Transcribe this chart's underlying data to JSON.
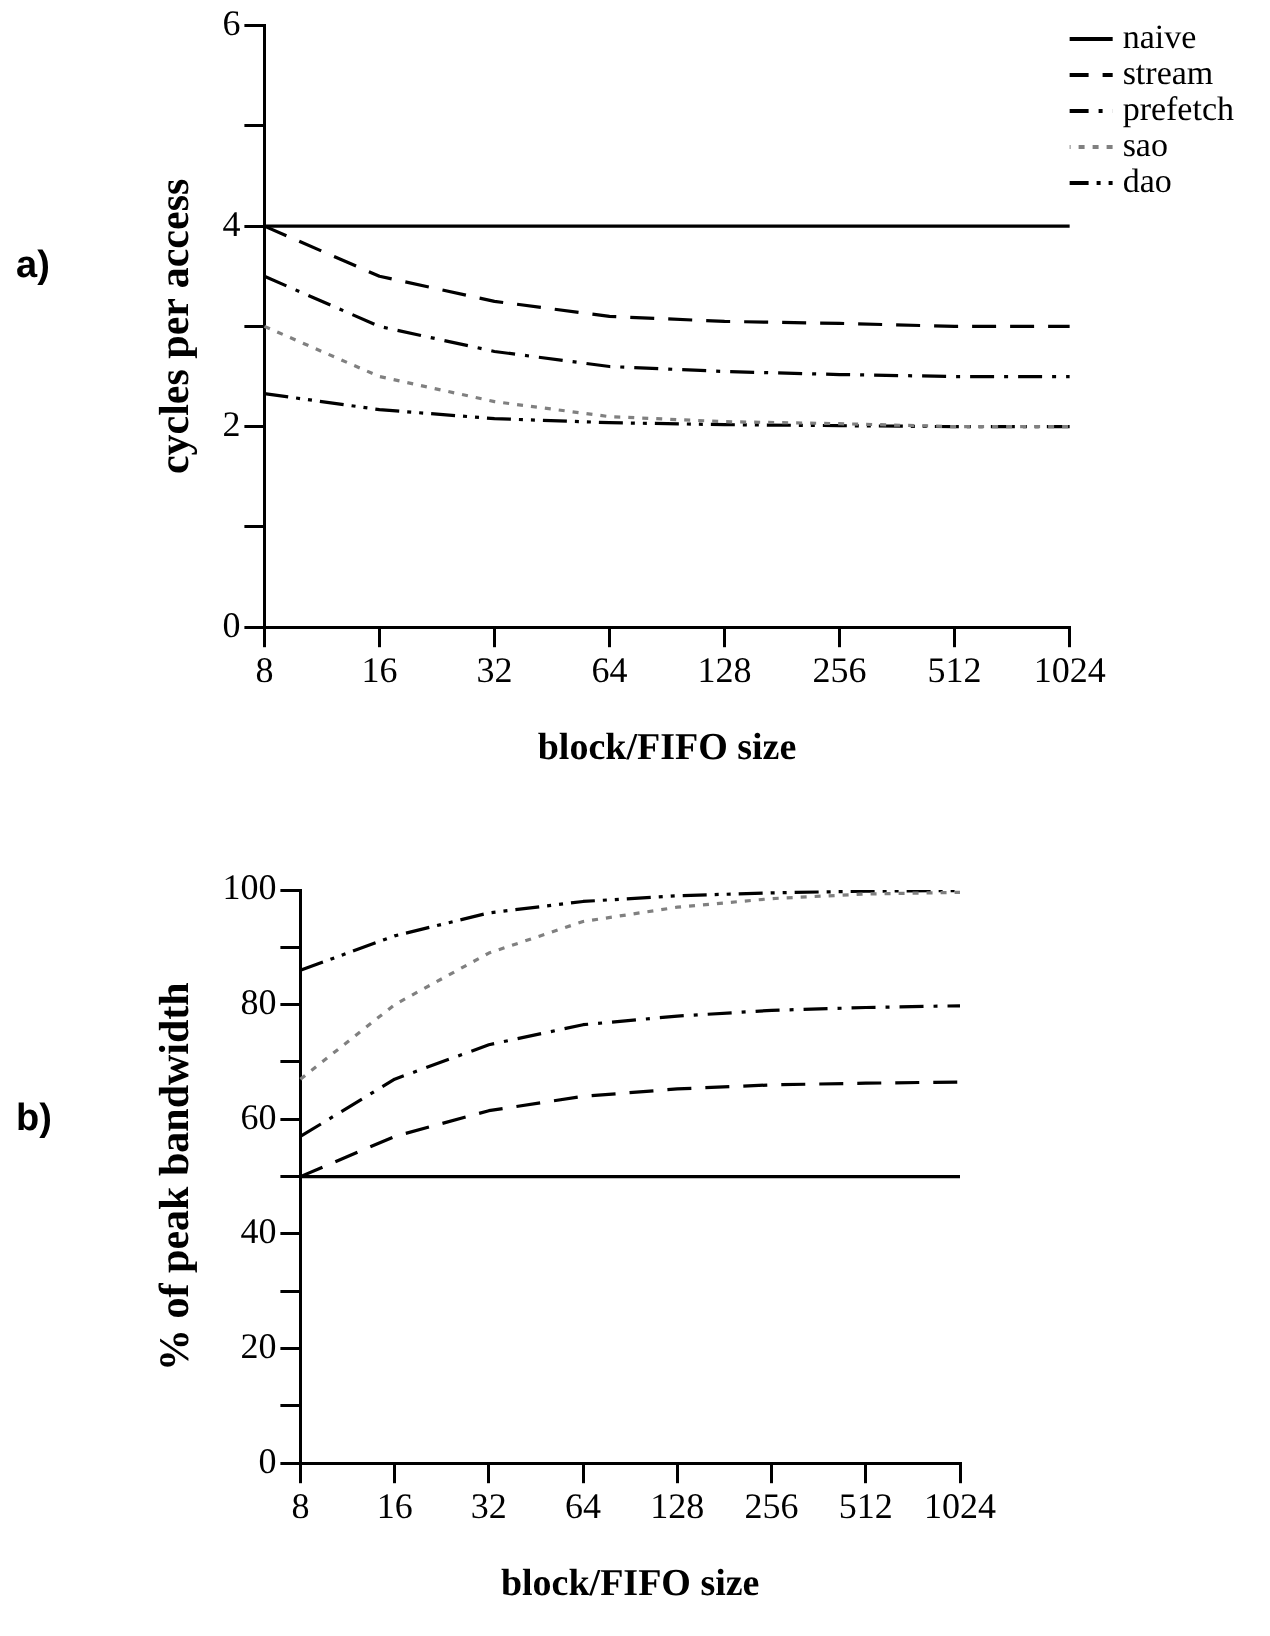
{
  "chart_data": [
    {
      "type": "line",
      "annotations": [
        "a)"
      ],
      "xlabel": "block/FIFO size",
      "ylabel": "cycles per access",
      "categories": [
        "8",
        "16",
        "32",
        "64",
        "128",
        "256",
        "512",
        "1024"
      ],
      "ylim": [
        0,
        6
      ],
      "yticks": [
        0,
        {
          "value": 1,
          "label": null
        },
        2,
        {
          "value": 3,
          "label": null
        },
        4,
        {
          "value": 5,
          "label": null
        },
        6
      ],
      "grid": false,
      "legend": "top right",
      "marker": "none",
      "series": [
        {
          "name": "naive",
          "color": "#000000",
          "line_style": "solid",
          "values": [
            4,
            4,
            4,
            4,
            4,
            4,
            4,
            4
          ]
        },
        {
          "name": "stream",
          "color": "#000000",
          "line_style": "dashed",
          "values": [
            4,
            3.5,
            3.25,
            3.1,
            3.05,
            3.03,
            3.0,
            3.0
          ]
        },
        {
          "name": "prefetch",
          "color": "#000000",
          "line_style": "dashdot",
          "values": [
            3.5,
            3.0,
            2.75,
            2.6,
            2.55,
            2.52,
            2.5,
            2.5
          ]
        },
        {
          "name": "sao",
          "color": "#808080",
          "line_style": "dotted",
          "values": [
            3.0,
            2.5,
            2.25,
            2.1,
            2.05,
            2.03,
            2.0,
            2.0
          ]
        },
        {
          "name": "dao",
          "color": "#000000",
          "line_style": "dashdotdot",
          "values": [
            2.33,
            2.17,
            2.08,
            2.04,
            2.02,
            2.01,
            2.0,
            2.0
          ]
        }
      ]
    },
    {
      "type": "line",
      "annotations": [
        "b)"
      ],
      "xlabel": "block/FIFO size",
      "ylabel": "% of peak bandwidth",
      "categories": [
        "8",
        "16",
        "32",
        "64",
        "128",
        "256",
        "512",
        "1024"
      ],
      "ylim": [
        0,
        100
      ],
      "yticks": [
        0,
        {
          "value": 10,
          "label": null
        },
        20,
        {
          "value": 30,
          "label": null
        },
        40,
        {
          "value": 50,
          "label": null
        },
        60,
        {
          "value": 70,
          "label": null
        },
        80,
        {
          "value": 90,
          "label": null
        },
        100
      ],
      "grid": false,
      "legend": false,
      "marker": "none",
      "series": [
        {
          "color": "#000000",
          "line_style": "solid",
          "values": [
            50,
            50,
            50,
            50,
            50,
            50,
            50,
            50
          ]
        },
        {
          "color": "#000000",
          "line_style": "dashed",
          "values": [
            50,
            57,
            61.5,
            64,
            65.3,
            66,
            66.3,
            66.5
          ]
        },
        {
          "color": "#000000",
          "line_style": "dashdot",
          "values": [
            57,
            67,
            73,
            76.5,
            78,
            79,
            79.5,
            79.8
          ]
        },
        {
          "color": "#808080",
          "line_style": "dotted",
          "values": [
            67,
            80,
            89,
            94.5,
            97,
            98.5,
            99.3,
            99.6
          ]
        },
        {
          "color": "#000000",
          "line_style": "dashdotdot",
          "values": [
            86,
            92,
            96,
            98,
            99,
            99.5,
            99.8,
            99.9
          ]
        }
      ]
    }
  ]
}
